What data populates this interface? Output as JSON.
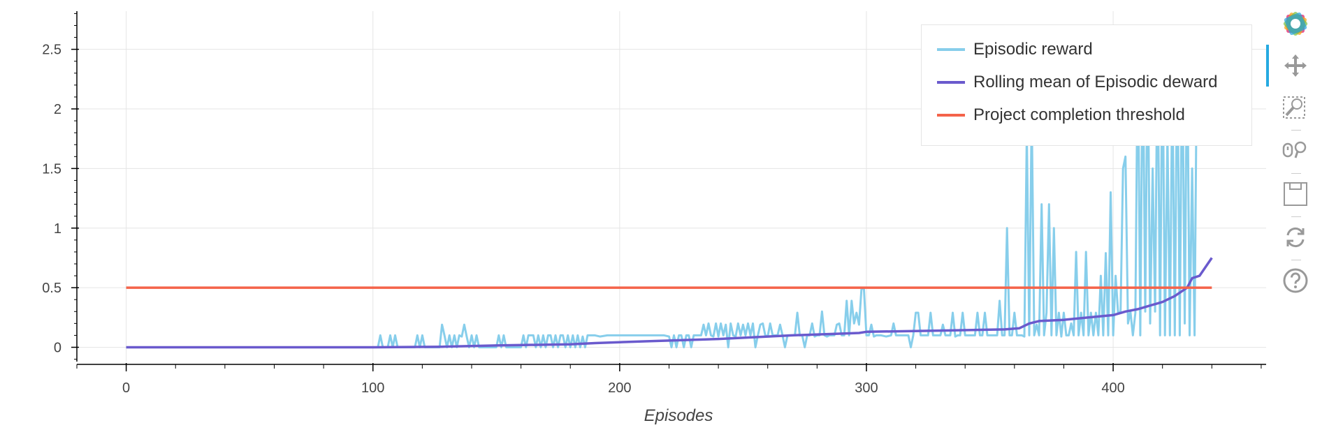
{
  "chart_data": {
    "type": "line",
    "xlabel": "Episodes",
    "ylabel": "",
    "xlim": [
      -20,
      462
    ],
    "ylim": [
      -0.12,
      2.82
    ],
    "x_ticks": [
      0,
      100,
      200,
      300,
      400
    ],
    "y_ticks": [
      0,
      0.5,
      1,
      1.5,
      2,
      2.5
    ],
    "x_tick_labels": [
      "0",
      "100",
      "200",
      "300",
      "400"
    ],
    "y_tick_labels": [
      "0",
      "0.5",
      "1",
      "1.5",
      "2",
      "2.5"
    ],
    "grid": true,
    "legend_position": "top-right",
    "series": [
      {
        "name": "Episodic reward",
        "color": "#87ceeb",
        "points": [
          [
            0,
            0
          ],
          [
            102,
            0
          ],
          [
            103,
            0.1
          ],
          [
            104,
            0
          ],
          [
            106,
            0
          ],
          [
            107,
            0.1
          ],
          [
            108,
            0
          ],
          [
            109,
            0.1
          ],
          [
            110,
            0
          ],
          [
            117,
            0
          ],
          [
            118,
            0.1
          ],
          [
            119,
            0
          ],
          [
            120,
            0.1
          ],
          [
            121,
            0
          ],
          [
            127,
            0
          ],
          [
            128,
            0.19
          ],
          [
            129,
            0.1
          ],
          [
            130,
            0
          ],
          [
            131,
            0.1
          ],
          [
            132,
            0
          ],
          [
            133,
            0.1
          ],
          [
            134,
            0
          ],
          [
            135,
            0.1
          ],
          [
            136,
            0.09
          ],
          [
            137,
            0.19
          ],
          [
            138,
            0.09
          ],
          [
            139,
            0
          ],
          [
            140,
            0.1
          ],
          [
            141,
            0
          ],
          [
            142,
            0.1
          ],
          [
            143,
            0
          ],
          [
            150,
            0
          ],
          [
            151,
            0.1
          ],
          [
            152,
            0
          ],
          [
            153,
            0.1
          ],
          [
            154,
            0
          ],
          [
            160,
            0
          ],
          [
            161,
            0.1
          ],
          [
            162,
            0
          ],
          [
            163,
            0.1
          ],
          [
            164,
            0.1
          ],
          [
            165,
            0.1
          ],
          [
            166,
            0
          ],
          [
            167,
            0.1
          ],
          [
            168,
            0
          ],
          [
            169,
            0.1
          ],
          [
            170,
            0
          ],
          [
            171,
            0.1
          ],
          [
            172,
            0.1
          ],
          [
            173,
            0
          ],
          [
            174,
            0.1
          ],
          [
            175,
            0
          ],
          [
            176,
            0.1
          ],
          [
            177,
            0.1
          ],
          [
            178,
            0
          ],
          [
            179,
            0.1
          ],
          [
            180,
            0
          ],
          [
            181,
            0.1
          ],
          [
            182,
            0
          ],
          [
            183,
            0.1
          ],
          [
            184,
            0
          ],
          [
            185,
            0.09
          ],
          [
            186,
            0
          ],
          [
            187,
            0.1
          ],
          [
            190,
            0.1
          ],
          [
            192,
            0.09
          ],
          [
            195,
            0.1
          ],
          [
            200,
            0.1
          ],
          [
            218,
            0.1
          ],
          [
            220,
            0.09
          ],
          [
            221,
            0
          ],
          [
            222,
            0.1
          ],
          [
            223,
            0
          ],
          [
            224,
            0.1
          ],
          [
            225,
            0.1
          ],
          [
            226,
            0
          ],
          [
            227,
            0.1
          ],
          [
            228,
            0.1
          ],
          [
            229,
            0
          ],
          [
            230,
            0.1
          ],
          [
            233,
            0.1
          ],
          [
            234,
            0.19
          ],
          [
            235,
            0.1
          ],
          [
            236,
            0.2
          ],
          [
            237,
            0.1
          ],
          [
            238,
            0.09
          ],
          [
            239,
            0.2
          ],
          [
            240,
            0.09
          ],
          [
            241,
            0.2
          ],
          [
            242,
            0.1
          ],
          [
            243,
            0.19
          ],
          [
            244,
            0
          ],
          [
            245,
            0.2
          ],
          [
            246,
            0.1
          ],
          [
            247,
            0.09
          ],
          [
            248,
            0.2
          ],
          [
            249,
            0.1
          ],
          [
            250,
            0.19
          ],
          [
            251,
            0.1
          ],
          [
            252,
            0.2
          ],
          [
            253,
            0.1
          ],
          [
            254,
            0.2
          ],
          [
            255,
            0
          ],
          [
            256,
            0.1
          ],
          [
            257,
            0.19
          ],
          [
            258,
            0.2
          ],
          [
            259,
            0.1
          ],
          [
            260,
            0.09
          ],
          [
            261,
            0.2
          ],
          [
            262,
            0.1
          ],
          [
            263,
            0.1
          ],
          [
            264,
            0.1
          ],
          [
            265,
            0.19
          ],
          [
            266,
            0.1
          ],
          [
            267,
            0
          ],
          [
            268,
            0.1
          ],
          [
            269,
            0.1
          ],
          [
            270,
            0.1
          ],
          [
            271,
            0.1
          ],
          [
            272,
            0.29
          ],
          [
            273,
            0.1
          ],
          [
            274,
            0.1
          ],
          [
            275,
            0
          ],
          [
            276,
            0.1
          ],
          [
            277,
            0.1
          ],
          [
            278,
            0.2
          ],
          [
            279,
            0.09
          ],
          [
            280,
            0.1
          ],
          [
            281,
            0.1
          ],
          [
            282,
            0.3
          ],
          [
            283,
            0.1
          ],
          [
            284,
            0.09
          ],
          [
            285,
            0.1
          ],
          [
            286,
            0.1
          ],
          [
            287,
            0.1
          ],
          [
            288,
            0.19
          ],
          [
            289,
            0.2
          ],
          [
            290,
            0.1
          ],
          [
            291,
            0.1
          ],
          [
            292,
            0.39
          ],
          [
            293,
            0.1
          ],
          [
            294,
            0.39
          ],
          [
            295,
            0.2
          ],
          [
            296,
            0.29
          ],
          [
            297,
            0.19
          ],
          [
            298,
            0.49
          ],
          [
            299,
            0.49
          ],
          [
            300,
            0.1
          ],
          [
            301,
            0.1
          ],
          [
            302,
            0.19
          ],
          [
            303,
            0.09
          ],
          [
            304,
            0.1
          ],
          [
            305,
            0.1
          ],
          [
            306,
            0.1
          ],
          [
            308,
            0.09
          ],
          [
            310,
            0.1
          ],
          [
            311,
            0.2
          ],
          [
            312,
            0.1
          ],
          [
            313,
            0.1
          ],
          [
            314,
            0.1
          ],
          [
            315,
            0.1
          ],
          [
            316,
            0.1
          ],
          [
            317,
            0.1
          ],
          [
            318,
            0
          ],
          [
            319,
            0.1
          ],
          [
            320,
            0.29
          ],
          [
            321,
            0.29
          ],
          [
            322,
            0.1
          ],
          [
            323,
            0.1
          ],
          [
            325,
            0.1
          ],
          [
            326,
            0.29
          ],
          [
            327,
            0.1
          ],
          [
            328,
            0.1
          ],
          [
            330,
            0.1
          ],
          [
            331,
            0.19
          ],
          [
            332,
            0.1
          ],
          [
            334,
            0.1
          ],
          [
            335,
            0.29
          ],
          [
            336,
            0.09
          ],
          [
            337,
            0.1
          ],
          [
            338,
            0.1
          ],
          [
            339,
            0.29
          ],
          [
            340,
            0.1
          ],
          [
            341,
            0.1
          ],
          [
            342,
            0.1
          ],
          [
            343,
            0.1
          ],
          [
            344,
            0.1
          ],
          [
            345,
            0.29
          ],
          [
            346,
            0.1
          ],
          [
            347,
            0.1
          ],
          [
            348,
            0.29
          ],
          [
            349,
            0.1
          ],
          [
            350,
            0.1
          ],
          [
            351,
            0.1
          ],
          [
            352,
            0.1
          ],
          [
            353,
            0.1
          ],
          [
            354,
            0.39
          ],
          [
            355,
            0.1
          ],
          [
            356,
            0.1
          ],
          [
            357,
            1
          ],
          [
            358,
            0.1
          ],
          [
            359,
            0.1
          ],
          [
            360,
            0.29
          ],
          [
            361,
            0.1
          ],
          [
            362,
            0.1
          ],
          [
            363,
            0.1
          ],
          [
            364,
            0.09
          ],
          [
            365,
            1.8
          ],
          [
            366,
            0.1
          ],
          [
            367,
            2
          ],
          [
            368,
            0.1
          ],
          [
            369,
            0.19
          ],
          [
            370,
            0.1
          ],
          [
            371,
            1.2
          ],
          [
            372,
            0.1
          ],
          [
            373,
            0.29
          ],
          [
            374,
            1.2
          ],
          [
            375,
            0.1
          ],
          [
            376,
            1
          ],
          [
            377,
            0.1
          ],
          [
            378,
            0.29
          ],
          [
            379,
            0.09
          ],
          [
            380,
            0.29
          ],
          [
            381,
            0.1
          ],
          [
            382,
            0.1
          ],
          [
            383,
            0.2
          ],
          [
            384,
            0.1
          ],
          [
            385,
            0.8
          ],
          [
            386,
            0.1
          ],
          [
            387,
            0.29
          ],
          [
            388,
            0.1
          ],
          [
            389,
            0.8
          ],
          [
            390,
            0.1
          ],
          [
            391,
            0.29
          ],
          [
            392,
            0.1
          ],
          [
            393,
            0.29
          ],
          [
            394,
            0.1
          ],
          [
            395,
            0.6
          ],
          [
            396,
            0.1
          ],
          [
            397,
            0.79
          ],
          [
            398,
            0.1
          ],
          [
            399,
            1.3
          ],
          [
            400,
            0.1
          ],
          [
            401,
            0.6
          ],
          [
            402,
            0.29
          ],
          [
            403,
            0.3
          ],
          [
            404,
            1.5
          ],
          [
            405,
            1.6
          ],
          [
            406,
            0.2
          ],
          [
            407,
            0.3
          ],
          [
            408,
            0.1
          ],
          [
            409,
            0.29
          ],
          [
            410,
            2.6
          ],
          [
            411,
            0.1
          ],
          [
            412,
            2.6
          ],
          [
            413,
            0.3
          ],
          [
            414,
            2.6
          ],
          [
            415,
            0.2
          ],
          [
            416,
            1.5
          ],
          [
            417,
            0.3
          ],
          [
            418,
            2.6
          ],
          [
            419,
            0.1
          ],
          [
            420,
            2.6
          ],
          [
            421,
            0.1
          ],
          [
            422,
            1.8
          ],
          [
            423,
            0.1
          ],
          [
            424,
            2.3
          ],
          [
            425,
            0.1
          ],
          [
            426,
            2.6
          ],
          [
            427,
            0.1
          ],
          [
            428,
            2.6
          ],
          [
            429,
            0.2
          ],
          [
            430,
            2.6
          ],
          [
            431,
            0.1
          ],
          [
            432,
            1.5
          ],
          [
            433,
            0.1
          ],
          [
            434,
            2.6
          ],
          [
            435,
            2.6
          ]
        ]
      },
      {
        "name": "Rolling mean of Episodic deward",
        "color": "#6a5acd",
        "points": [
          [
            0,
            0
          ],
          [
            100,
            0
          ],
          [
            128,
            0.005
          ],
          [
            150,
            0.015
          ],
          [
            180,
            0.025
          ],
          [
            190,
            0.035
          ],
          [
            210,
            0.05
          ],
          [
            240,
            0.07
          ],
          [
            270,
            0.1
          ],
          [
            297,
            0.12
          ],
          [
            300,
            0.13
          ],
          [
            330,
            0.14
          ],
          [
            356,
            0.15
          ],
          [
            362,
            0.16
          ],
          [
            366,
            0.2
          ],
          [
            370,
            0.22
          ],
          [
            380,
            0.23
          ],
          [
            390,
            0.25
          ],
          [
            400,
            0.27
          ],
          [
            405,
            0.3
          ],
          [
            410,
            0.32
          ],
          [
            415,
            0.35
          ],
          [
            420,
            0.38
          ],
          [
            425,
            0.43
          ],
          [
            430,
            0.5
          ],
          [
            432,
            0.58
          ],
          [
            435,
            0.6
          ],
          [
            440,
            0.75
          ]
        ]
      },
      {
        "name": "Project completion threshold",
        "color": "#f4634a",
        "points": [
          [
            0,
            0.5
          ],
          [
            440,
            0.5
          ]
        ]
      }
    ]
  },
  "legend": {
    "items": [
      {
        "label": "Episodic reward",
        "color": "#87ceeb"
      },
      {
        "label": "Rolling mean of Episodic deward",
        "color": "#6a5acd"
      },
      {
        "label": "Project completion threshold",
        "color": "#f4634a"
      }
    ]
  },
  "toolbar": {
    "accent_color": "#26aae1",
    "tools": [
      {
        "name": "bokeh-logo-icon",
        "tooltip": ""
      },
      {
        "name": "pan-tool-icon",
        "active": true
      },
      {
        "name": "box-zoom-tool-icon",
        "active": false
      },
      {
        "name": "wheel-zoom-tool-icon",
        "active": false
      },
      {
        "name": "save-tool-icon",
        "active": false
      },
      {
        "name": "reset-tool-icon",
        "active": false
      },
      {
        "name": "help-tool-icon",
        "active": false
      }
    ]
  }
}
